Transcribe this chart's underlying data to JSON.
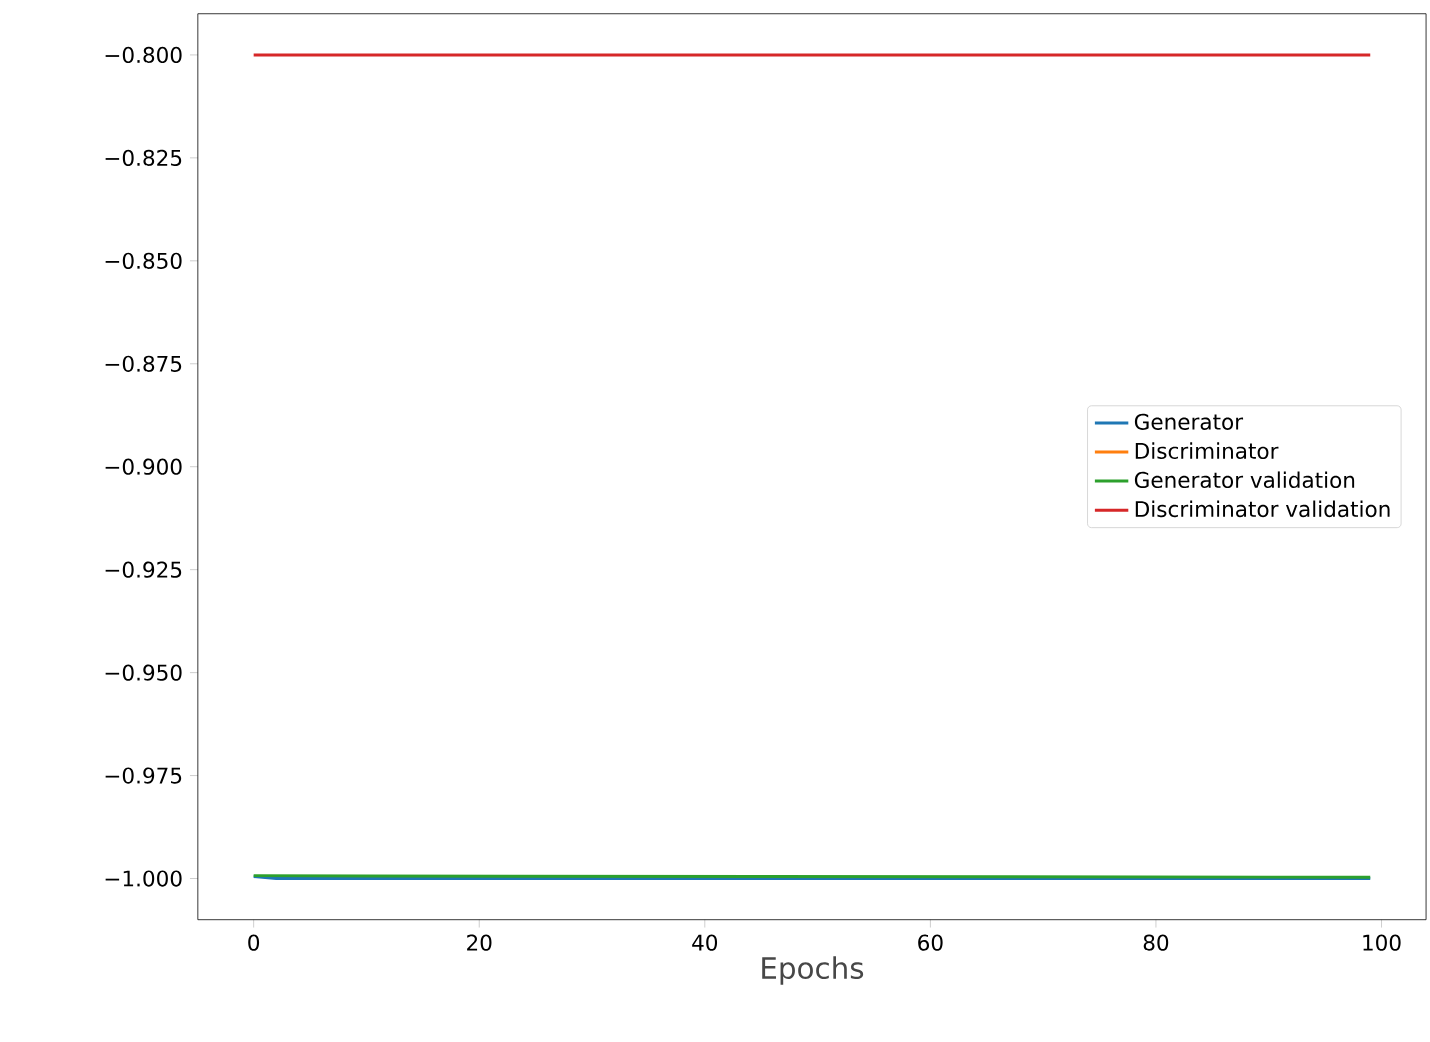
{
  "chart_data": {
    "type": "line",
    "xlabel": "Epochs",
    "xlim": [
      -4.95,
      103.95
    ],
    "xticks": [
      0,
      20,
      40,
      60,
      80,
      100
    ],
    "ylim": [
      -1.01,
      -0.79
    ],
    "yticks": [
      {
        "value": -0.8,
        "label": "−0.800"
      },
      {
        "value": -0.825,
        "label": "−0.825"
      },
      {
        "value": -0.85,
        "label": "−0.850"
      },
      {
        "value": -0.875,
        "label": "−0.875"
      },
      {
        "value": -0.9,
        "label": "−0.900"
      },
      {
        "value": -0.925,
        "label": "−0.925"
      },
      {
        "value": -0.95,
        "label": "−0.950"
      },
      {
        "value": -0.975,
        "label": "−0.975"
      },
      {
        "value": -1.0,
        "label": "−1.000"
      }
    ],
    "legend": "right",
    "grid": false,
    "series": [
      {
        "name": "Generator",
        "color": "#1f77b4",
        "x": [
          0,
          2,
          99
        ],
        "values": [
          -0.9995,
          -1.0,
          -1.0
        ]
      },
      {
        "name": "Discriminator",
        "color": "#ff7f0e"
      },
      {
        "name": "Generator validation",
        "color": "#2ca02c",
        "x": [
          0,
          10,
          99
        ],
        "values": [
          -0.9993,
          -0.9994,
          -0.9997
        ]
      },
      {
        "name": "Discriminator validation",
        "color": "#d62728",
        "x": [
          0,
          99
        ],
        "values": [
          -0.8,
          -0.8
        ]
      }
    ]
  }
}
